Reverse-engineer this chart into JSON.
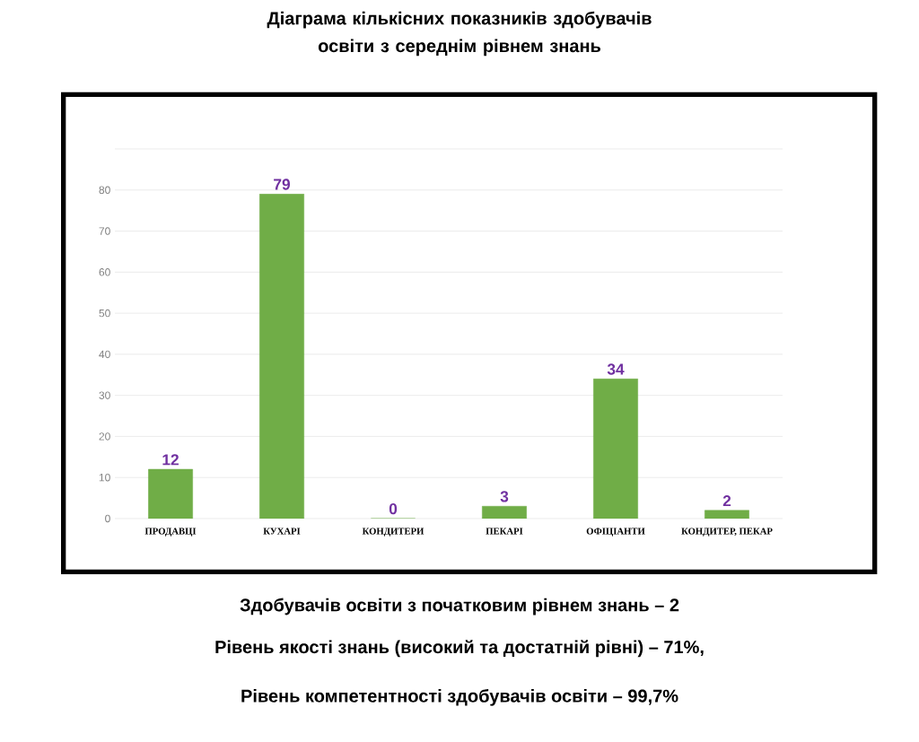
{
  "chart_data": {
    "type": "bar",
    "title": "Діаграма кількісних показників здобувачів освіти з середнім рівнем знань",
    "categories": [
      "ПРОДАВЦІ",
      "КУХАРІ",
      "КОНДИТЕРИ",
      "ПЕКАРІ",
      "ОФІЦІАНТИ",
      "КОНДИТЕР, ПЕКАР"
    ],
    "values": [
      12,
      79,
      0,
      3,
      34,
      2
    ],
    "color": "#70ad47",
    "ylim": [
      0,
      90
    ],
    "yticks": [
      0,
      10,
      20,
      30,
      40,
      50,
      60,
      70,
      80,
      {
        "value": 90,
        "label": null
      }
    ],
    "grid": "y",
    "data_labels": true,
    "annotations": [
      "Здобувачів освіти з початковим рівнем знань – 2",
      "Рівень якості знань (високий та достатній рівні) – 71%,",
      "Рівень компетентності здобувачів освіти – 99,7%"
    ]
  }
}
